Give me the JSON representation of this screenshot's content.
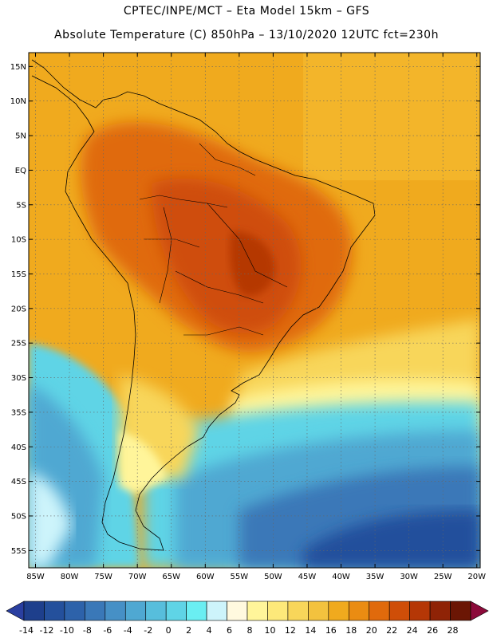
{
  "header": {
    "line1": "CPTEC/INPE/MCT –  Eta Model 15km – GFS",
    "line2": "Absolute Temperature (C) 850hPa – 13/10/2020 12UTC fct=230h"
  },
  "map": {
    "lat_labels": [
      "15N",
      "10N",
      "5N",
      "EQ",
      "5S",
      "10S",
      "15S",
      "20S",
      "25S",
      "30S",
      "35S",
      "40S",
      "45S",
      "50S",
      "55S"
    ],
    "lon_labels": [
      "85W",
      "80W",
      "75W",
      "70W",
      "65W",
      "60W",
      "55W",
      "50W",
      "45W",
      "40W",
      "35W",
      "30W",
      "25W",
      "20W"
    ]
  },
  "colorbar": {
    "labels": [
      "-14",
      "-12",
      "-10",
      "-8",
      "-6",
      "-4",
      "-2",
      "0",
      "2",
      "4",
      "6",
      "8",
      "10",
      "12",
      "14",
      "16",
      "18",
      "20",
      "22",
      "24",
      "26",
      "28"
    ],
    "colors": [
      "#1e3f8c",
      "#24509c",
      "#2d62aa",
      "#3a78b8",
      "#4690c6",
      "#4fa8d2",
      "#57bedc",
      "#5fd4e6",
      "#6aeef2",
      "#cdf4fb",
      "#fff9df",
      "#fff59a",
      "#fde97a",
      "#f8d65a",
      "#f3c23e",
      "#f0aa1e",
      "#ea8c12",
      "#e06a0c",
      "#cf4e08",
      "#b53706",
      "#8f2306",
      "#6b1604"
    ],
    "under_color": "#2a3fa0",
    "over_color": "#8c0a3a"
  }
}
